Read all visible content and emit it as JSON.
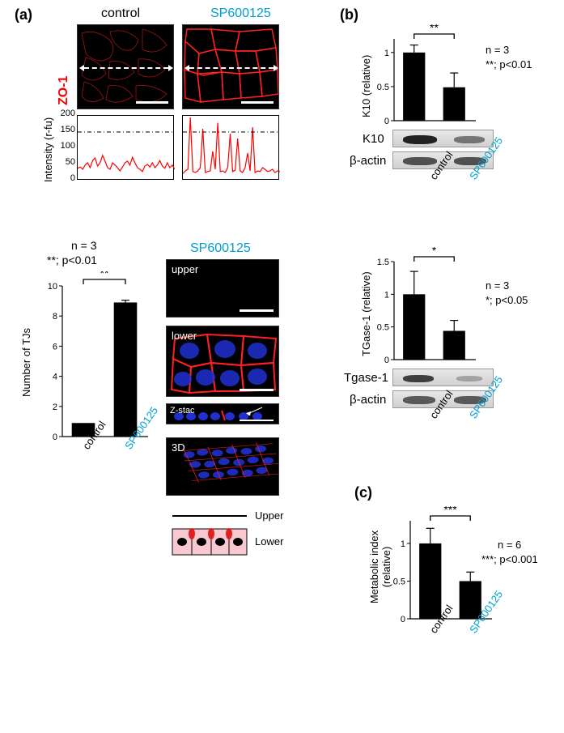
{
  "panel_a": {
    "label": "(a)",
    "top_titles": {
      "control": "control",
      "sp": "SP600125"
    },
    "zo1_label": "ZO-1",
    "intensity_ylabel": "Intensity (r-fu)",
    "intensity_plot": {
      "ylim": [
        0,
        200
      ],
      "yticks": [
        0,
        50,
        100,
        150,
        200
      ],
      "threshold": 150,
      "line_color": "#ff0000",
      "background_color": "#ffffff",
      "control_trace": [
        38,
        42,
        35,
        48,
        55,
        40,
        62,
        70,
        45,
        55,
        78,
        60,
        40,
        35,
        55,
        48,
        40,
        30,
        42,
        55,
        60,
        48,
        72,
        55,
        40,
        35,
        28,
        45,
        50,
        42,
        55,
        40,
        48,
        62,
        45,
        38,
        55,
        40,
        48,
        35
      ],
      "sp_trace": [
        22,
        30,
        35,
        195,
        28,
        25,
        30,
        40,
        160,
        25,
        28,
        30,
        90,
        35,
        178,
        28,
        30,
        25,
        40,
        145,
        28,
        32,
        130,
        30,
        25,
        40,
        85,
        30,
        165,
        25,
        30,
        28,
        40,
        35,
        28,
        30,
        35,
        25,
        30,
        28
      ]
    },
    "tj_chart": {
      "n_text": "n = 3",
      "sig_text": "**; p<0.01",
      "sig_mark": "**",
      "ylabel": "Number of TJs",
      "ylim": [
        0,
        10
      ],
      "yticks": [
        0,
        2,
        4,
        6,
        8,
        10
      ],
      "categories": [
        "control",
        "SP600125"
      ],
      "values": [
        0.9,
        8.9
      ],
      "errors": [
        0,
        0.15
      ],
      "bar_color": "#000000",
      "cat_colors": [
        "#000000",
        "#00a0d0"
      ]
    },
    "zstack": {
      "title": "SP600125",
      "title_color": "#00a0d0",
      "labels": {
        "upper": "upper",
        "lower": "lower",
        "zstac": "Z-stac",
        "threed": "3D"
      },
      "legend": {
        "upper": "Upper",
        "lower": "Lower"
      }
    }
  },
  "panel_b": {
    "label": "(b)",
    "k10": {
      "ylabel": "K10 (relative)",
      "blot_label": "K10",
      "actin_label": "β-actin",
      "n_text": "n = 3",
      "sig_text": "**; p<0.01",
      "sig_mark": "**",
      "ylim": [
        0,
        1.2
      ],
      "yticks": [
        0,
        0.5,
        1
      ],
      "categories": [
        "control",
        "SP600125"
      ],
      "values": [
        1.0,
        0.49
      ],
      "errors": [
        0.11,
        0.21
      ],
      "bar_color": "#000000",
      "cat_colors": [
        "#000000",
        "#00a0d0"
      ]
    },
    "tgase": {
      "ylabel": "TGase-1 (relative)",
      "blot_label": "Tgase-1",
      "actin_label": "β-actin",
      "n_text": "n = 3",
      "sig_text": "*; p<0.05",
      "sig_mark": "*",
      "ylim": [
        0,
        1.5
      ],
      "yticks": [
        0,
        0.5,
        1,
        1.5
      ],
      "categories": [
        "control",
        "SP600125"
      ],
      "values": [
        1.0,
        0.44
      ],
      "errors": [
        0.35,
        0.16
      ],
      "bar_color": "#000000",
      "cat_colors": [
        "#000000",
        "#00a0d0"
      ]
    }
  },
  "panel_c": {
    "label": "(c)",
    "chart": {
      "ylabel": "Metabolic index (relative)",
      "n_text": "n = 6",
      "sig_text": "***; p<0.001",
      "sig_mark": "***",
      "ylim": [
        0,
        1.3
      ],
      "yticks": [
        0,
        0.5,
        1
      ],
      "categories": [
        "control",
        "SP600125"
      ],
      "values": [
        1.0,
        0.5
      ],
      "errors": [
        0.2,
        0.12
      ],
      "bar_color": "#000000",
      "cat_colors": [
        "#000000",
        "#00a0d0"
      ]
    }
  }
}
